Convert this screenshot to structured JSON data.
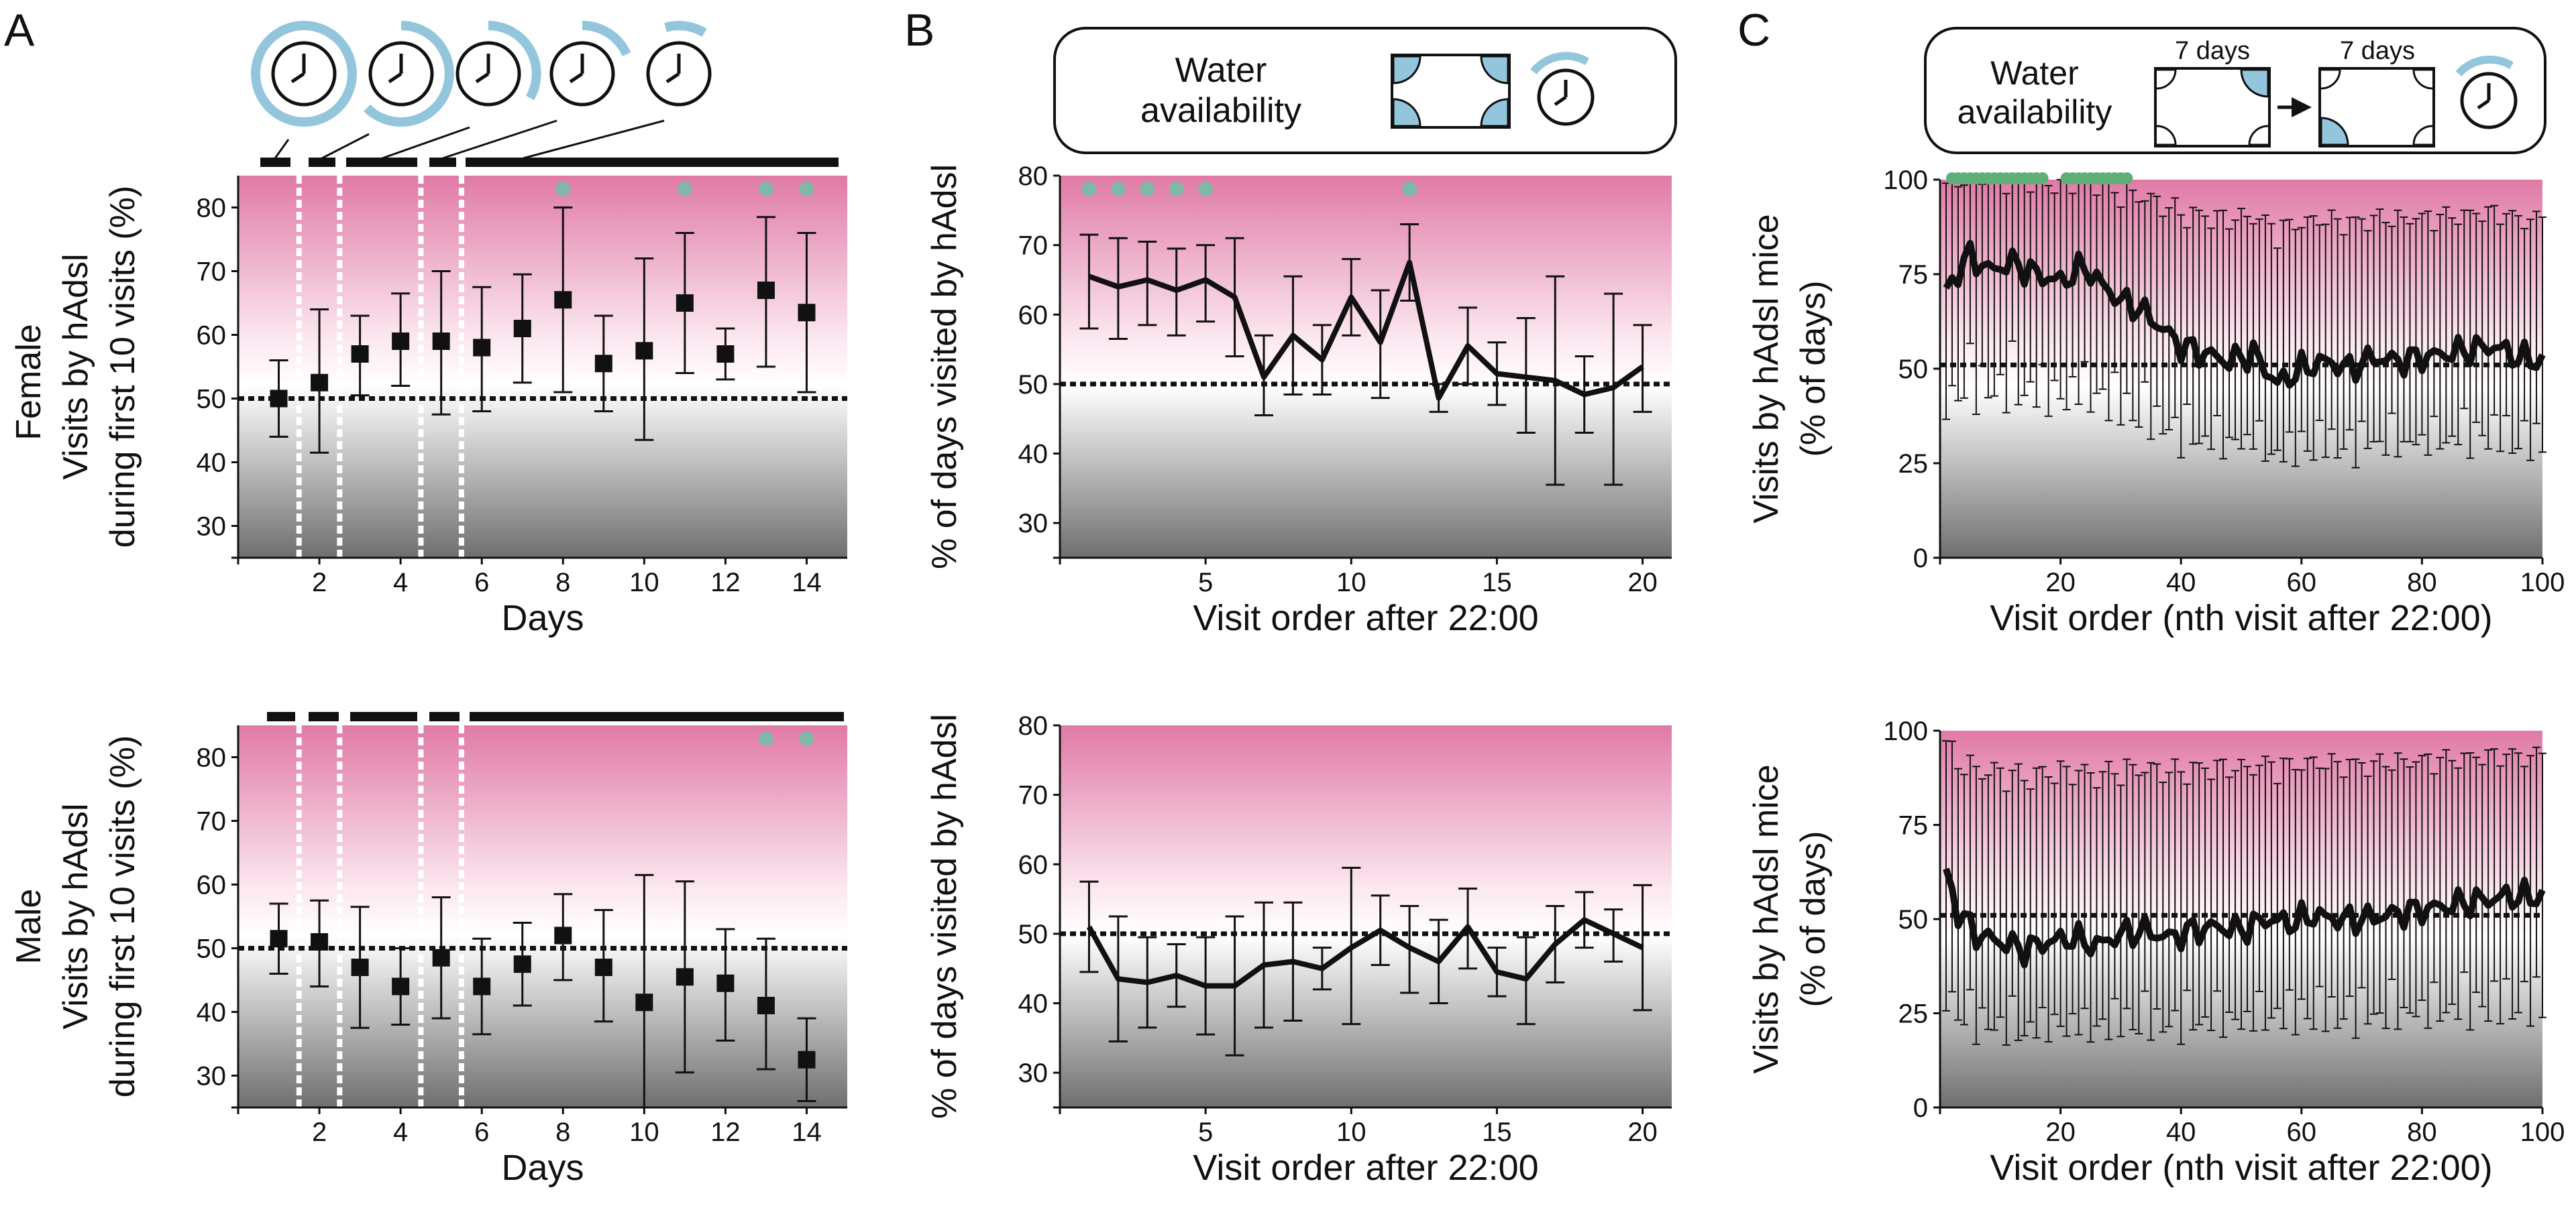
{
  "colors": {
    "bg_top": "#e07aa6",
    "bg_mid": "#ffffff",
    "bg_bottom": "#6f6f6f",
    "cyan": "#93c6dc",
    "teal": "#7fb8a6",
    "green": "#5fb078",
    "ink": "#111111"
  },
  "panels": {
    "A": {
      "letter": "A",
      "female_row_label": "Female",
      "male_row_label": "Male"
    },
    "B": {
      "letter": "B",
      "legend_text_1": "Water",
      "legend_text_2": "availability"
    },
    "C": {
      "letter": "C",
      "legend_text_1": "Water",
      "legend_text_2": "availability",
      "legend_days_1": "7 days",
      "legend_days_2": "7 days"
    }
  },
  "chart_data": [
    {
      "id": "A-female",
      "type": "scatter",
      "xlabel": "Days",
      "ylabel_line1": "Visits by hAdsl",
      "ylabel_line2": "during first 10 visits (%)",
      "xlim": [
        0,
        15
      ],
      "ylim": [
        25,
        85
      ],
      "xticks": [
        2,
        4,
        6,
        8,
        10,
        12,
        14
      ],
      "yticks": [
        30,
        40,
        50,
        60,
        70,
        80
      ],
      "reference": 50,
      "x": [
        1,
        2,
        3,
        4,
        5,
        6,
        7,
        8,
        9,
        10,
        11,
        12,
        13,
        14
      ],
      "y": [
        50,
        52.5,
        57,
        59,
        59,
        58,
        61,
        65.5,
        55.5,
        57.5,
        65,
        57,
        67,
        63.5
      ],
      "err_low": [
        44,
        41.5,
        50.5,
        52,
        47.5,
        48,
        52.5,
        51,
        48,
        43.5,
        54,
        53,
        55,
        51
      ],
      "err_high": [
        56,
        64,
        63,
        66.5,
        70,
        67.5,
        69.5,
        80,
        63,
        72,
        76,
        61,
        78.5,
        76
      ],
      "significance": [
        8,
        11,
        13,
        14
      ],
      "phase_bounds": [
        1.5,
        2.5,
        4.5,
        5.5
      ]
    },
    {
      "id": "A-male",
      "type": "scatter",
      "xlabel": "Days",
      "ylabel_line1": "Visits by hAdsl",
      "ylabel_line2": "during first 10 visits (%)",
      "xlim": [
        0,
        15
      ],
      "ylim": [
        25,
        85
      ],
      "xticks": [
        2,
        4,
        6,
        8,
        10,
        12,
        14
      ],
      "yticks": [
        30,
        40,
        50,
        60,
        70,
        80
      ],
      "reference": 50,
      "x": [
        1,
        2,
        3,
        4,
        5,
        6,
        7,
        8,
        9,
        10,
        11,
        12,
        13,
        14
      ],
      "y": [
        51.5,
        51,
        47,
        44,
        48.5,
        44,
        47.5,
        52,
        47,
        41.5,
        45.5,
        44.5,
        41,
        32.5
      ],
      "err_low": [
        46,
        44,
        37.5,
        38,
        39,
        36.5,
        41,
        45,
        38.5,
        25,
        30.5,
        35.5,
        31,
        26
      ],
      "err_high": [
        57,
        57.5,
        56.5,
        50,
        58,
        51.5,
        54,
        58.5,
        56,
        61.5,
        60.5,
        53,
        51.5,
        39
      ],
      "significance": [
        13,
        14
      ],
      "phase_bounds": [
        1.5,
        2.5,
        4.5,
        5.5
      ]
    },
    {
      "id": "B-female",
      "type": "line",
      "xlabel": "Visit order after 22:00",
      "ylabel": "% of days visited by hAdsl",
      "xlim": [
        0,
        21
      ],
      "ylim": [
        25,
        80
      ],
      "xticks": [
        5,
        10,
        15,
        20
      ],
      "yticks": [
        30,
        40,
        50,
        60,
        70,
        80
      ],
      "reference": 50,
      "x": [
        1,
        2,
        3,
        4,
        5,
        6,
        7,
        8,
        9,
        10,
        11,
        12,
        13,
        14,
        15,
        16,
        17,
        18,
        19,
        20
      ],
      "y": [
        65.5,
        64,
        65,
        63.5,
        65,
        62.5,
        51,
        57,
        53.5,
        62.5,
        56,
        67.5,
        48,
        55.5,
        51.5,
        51,
        50.5,
        48.5,
        49.5,
        52.5
      ],
      "err_low": [
        58,
        56.5,
        58.5,
        57,
        59,
        54,
        45.5,
        48.5,
        48.5,
        57,
        48,
        62,
        46,
        50,
        47,
        43,
        35.5,
        43,
        35.5,
        46
      ],
      "err_high": [
        71.5,
        71,
        70.5,
        69.5,
        70,
        71,
        57,
        65.5,
        58.5,
        68,
        63.5,
        73,
        50,
        61,
        56,
        59.5,
        65.5,
        54,
        63,
        58.5
      ],
      "significance": [
        1,
        2,
        3,
        4,
        5,
        12
      ]
    },
    {
      "id": "B-male",
      "type": "line",
      "xlabel": "Visit order after 22:00",
      "ylabel": "% of days visited by hAdsl",
      "xlim": [
        0,
        21
      ],
      "ylim": [
        25,
        80
      ],
      "xticks": [
        5,
        10,
        15,
        20
      ],
      "yticks": [
        30,
        40,
        50,
        60,
        70,
        80
      ],
      "reference": 50,
      "x": [
        1,
        2,
        3,
        4,
        5,
        6,
        7,
        8,
        9,
        10,
        11,
        12,
        13,
        14,
        15,
        16,
        17,
        18,
        19,
        20
      ],
      "y": [
        51,
        43.5,
        43,
        44,
        42.5,
        42.5,
        45.5,
        46,
        45,
        48,
        50.5,
        48,
        46,
        51,
        44.5,
        43.5,
        48.5,
        52,
        50,
        48
      ],
      "err_low": [
        44.5,
        34.5,
        36.5,
        39.5,
        35.5,
        32.5,
        36.5,
        37.5,
        42,
        37,
        45.5,
        41.5,
        40,
        45,
        41,
        37,
        43,
        48,
        46,
        39
      ],
      "err_high": [
        57.5,
        52.5,
        49.5,
        48.5,
        49.5,
        52.5,
        54.5,
        54.5,
        48,
        59.5,
        55.5,
        54,
        52,
        56.5,
        48,
        49.5,
        54,
        56,
        53.5,
        57
      ],
      "significance": []
    },
    {
      "id": "C-female",
      "type": "line",
      "xlabel": "Visit order (nth visit after 22:00)",
      "ylabel_line1": "Visits by hAdsl mice",
      "ylabel_line2": "(% of days)",
      "xlim": [
        0,
        100
      ],
      "ylim": [
        0,
        100
      ],
      "xticks": [
        20,
        40,
        60,
        80,
        100
      ],
      "yticks": [
        0,
        25,
        50,
        75,
        100
      ],
      "reference": 51,
      "x_start": 1,
      "x_end": 100,
      "anchors_x": [
        1,
        3,
        5,
        8,
        12,
        16,
        20,
        24,
        27,
        30,
        33,
        36,
        40,
        44,
        48,
        52,
        56,
        60,
        64,
        68,
        72,
        76,
        80,
        84,
        88,
        92,
        96,
        100
      ],
      "anchors_y": [
        70,
        76,
        80,
        76,
        78,
        75,
        73,
        77,
        72,
        68,
        66,
        62,
        56,
        54,
        52,
        54,
        46,
        50,
        52,
        50,
        53,
        52,
        53,
        54,
        55,
        56,
        53,
        52
      ],
      "err_up_factor": 0.55,
      "err_down_factor": 0.45,
      "significance_range": [
        2,
        31
      ]
    },
    {
      "id": "C-male",
      "type": "line",
      "xlabel": "Visit order (nth visit after 22:00)",
      "ylabel_line1": "Visits by hAdsl mice",
      "ylabel_line2": "(% of days)",
      "xlim": [
        0,
        100
      ],
      "ylim": [
        0,
        100
      ],
      "xticks": [
        20,
        40,
        60,
        80,
        100
      ],
      "yticks": [
        0,
        25,
        50,
        75,
        100
      ],
      "reference": 51,
      "x_start": 1,
      "x_end": 100,
      "anchors_x": [
        1,
        3,
        6,
        10,
        14,
        18,
        22,
        26,
        30,
        34,
        38,
        42,
        46,
        50,
        54,
        58,
        62,
        66,
        70,
        74,
        78,
        82,
        86,
        90,
        94,
        100
      ],
      "anchors_y": [
        62,
        52,
        46,
        44,
        42,
        44,
        45,
        43,
        46,
        47,
        45,
        47,
        48,
        47,
        50,
        49,
        51,
        50,
        50,
        51,
        52,
        53,
        54,
        55,
        56,
        56
      ],
      "err_up_factor": 0.6,
      "err_down_factor": 0.55,
      "significance_range": []
    }
  ]
}
